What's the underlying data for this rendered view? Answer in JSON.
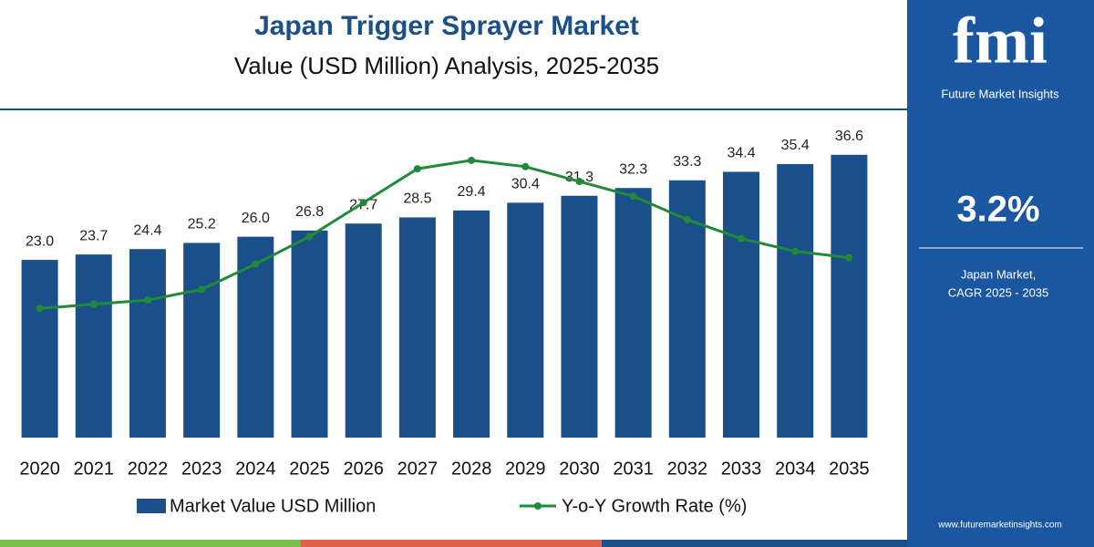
{
  "chart_data": {
    "type": "bar-line",
    "title": "Japan Trigger Sprayer Market",
    "subtitle": "Value (USD Million) Analysis, 2025-2035",
    "categories": [
      "2020",
      "2021",
      "2022",
      "2023",
      "2024",
      "2025",
      "2026",
      "2027",
      "2028",
      "2029",
      "2030",
      "2031",
      "2032",
      "2033",
      "2034",
      "2035"
    ],
    "series": [
      {
        "name": "Market Value USD Million",
        "type": "bar",
        "color": "#1b4f8a",
        "values": [
          23.0,
          23.7,
          24.4,
          25.2,
          26.0,
          26.8,
          27.7,
          28.5,
          29.4,
          30.4,
          31.3,
          32.3,
          33.3,
          34.4,
          35.4,
          36.6
        ],
        "value_labels": [
          "23.0",
          "23.7",
          "24.4",
          "25.2",
          "26.0",
          "26.8",
          "27.7",
          "28.5",
          "29.4",
          "30.4",
          "31.3",
          "32.3",
          "33.3",
          "34.4",
          "35.4",
          "36.6"
        ]
      },
      {
        "name": "Y-o-Y Growth Rate (%)",
        "type": "line",
        "axis": "y2",
        "color": "#1f8a3a",
        "values": [
          2.9,
          2.92,
          2.94,
          2.99,
          3.11,
          3.24,
          3.4,
          3.56,
          3.6,
          3.57,
          3.5,
          3.43,
          3.32,
          3.23,
          3.17,
          3.14
        ]
      }
    ],
    "ylim": [
      0,
      40
    ],
    "y2lim": [
      2.29,
      3.75
    ],
    "grid": false
  },
  "sidebar": {
    "logo": "fmi",
    "brand": "Future Market Insights",
    "cagr": "3.2%",
    "cagr_label": [
      "Japan Market,",
      "CAGR 2025 - 2035"
    ],
    "url": "www.futuremarketinsights.com"
  }
}
